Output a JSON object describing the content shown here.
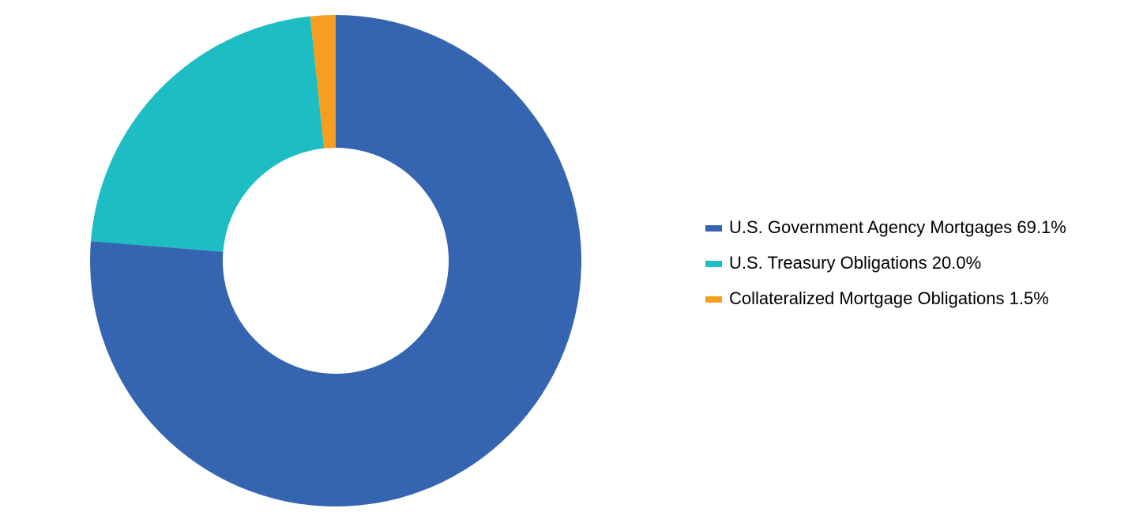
{
  "chart_data": {
    "type": "pie",
    "donut": true,
    "categories": [
      "U.S. Government Agency Mortgages",
      "U.S. Treasury Obligations",
      "Collateralized Mortgage Obligations"
    ],
    "values": [
      69.1,
      20.0,
      1.5
    ],
    "value_labels": [
      "69.1%",
      "20.0%",
      "1.5%"
    ],
    "colors": [
      "#3565b0",
      "#1cbec3",
      "#f59e1f"
    ],
    "legend": "right"
  }
}
